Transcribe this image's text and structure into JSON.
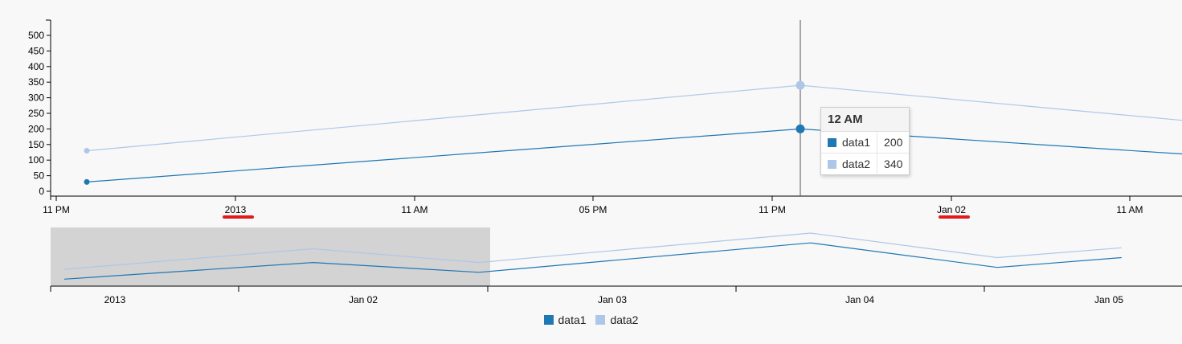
{
  "chart_data": {
    "type": "line",
    "x": [
      "2013-01-01 00:00",
      "2013-01-02 00:00",
      "2013-01-02 16:00",
      "2013-01-04 00:00",
      "2013-01-04 18:00",
      "2013-01-05 06:00"
    ],
    "series": [
      {
        "name": "data1",
        "color": "#1f77b4",
        "values": [
          30,
          200,
          100,
          400,
          150,
          250
        ]
      },
      {
        "name": "data2",
        "color": "#aec7e8",
        "values": [
          130,
          340,
          200,
          500,
          250,
          350
        ]
      }
    ],
    "ylim": [
      0,
      500
    ],
    "y_ticks": [
      "0",
      "50",
      "100",
      "150",
      "200",
      "250",
      "300",
      "350",
      "400",
      "450",
      "500"
    ],
    "main_x_ticks": [
      "11 PM",
      "2013",
      "11 AM",
      "05 PM",
      "11 PM",
      "Jan 02",
      "11 AM"
    ],
    "subchart_x_ticks": [
      "2013",
      "Jan 02",
      "Jan 03",
      "Jan 04",
      "Jan 05"
    ],
    "tooltip": {
      "title": "12 AM",
      "rows": [
        {
          "name": "data1",
          "value": "200",
          "color": "#1f77b4"
        },
        {
          "name": "data2",
          "value": "340",
          "color": "#aec7e8"
        }
      ]
    },
    "legend": [
      {
        "name": "data1",
        "color": "#1f77b4"
      },
      {
        "name": "data2",
        "color": "#aec7e8"
      }
    ],
    "highlight_color": "#e31a1c",
    "brush_fill": "#d3d3d3"
  }
}
